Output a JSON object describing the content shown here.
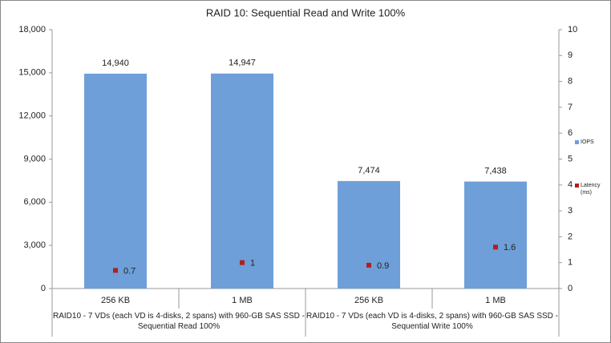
{
  "chart_data": {
    "type": "bar",
    "title": "RAID 10: Sequential Read and Write 100%",
    "categories": [
      "256 KB",
      "1 MB",
      "256 KB",
      "1 MB"
    ],
    "group_labels": [
      "RAID10 - 7 VDs (each VD is 4-disks, 2 spans) with 960-GB SAS SSD - Sequential Read 100%",
      "RAID10 - 7 VDs (each VD is 4-disks, 2 spans) with 960-GB SAS SSD - Sequential Write 100%"
    ],
    "series": [
      {
        "name": "IOPS",
        "type": "bar",
        "color": "#6f9fd8",
        "values": [
          14940,
          14947,
          7474,
          7438
        ],
        "value_labels": [
          "14,940",
          "14,947",
          "7,474",
          "7,438"
        ]
      },
      {
        "name": "Latency (ms)",
        "type": "scatter",
        "axis": "y2",
        "color": "#b0201f",
        "values": [
          0.7,
          1,
          0.9,
          1.6
        ]
      }
    ],
    "ylim": [
      0,
      18000
    ],
    "yticks": [
      0,
      {
        "value": 3000,
        "label": "3,000"
      },
      {
        "value": 6000,
        "label": "6,000"
      },
      {
        "value": 9000,
        "label": "9,000"
      },
      {
        "value": 12000,
        "label": "12,000"
      },
      {
        "value": 15000,
        "label": "15,000"
      },
      {
        "value": 18000,
        "label": "18,000"
      }
    ],
    "y2lim": [
      0,
      10
    ],
    "y2ticks": [
      0,
      1,
      2,
      3,
      4,
      5,
      6,
      7,
      8,
      9,
      10
    ],
    "legend": "right",
    "grid": false
  }
}
